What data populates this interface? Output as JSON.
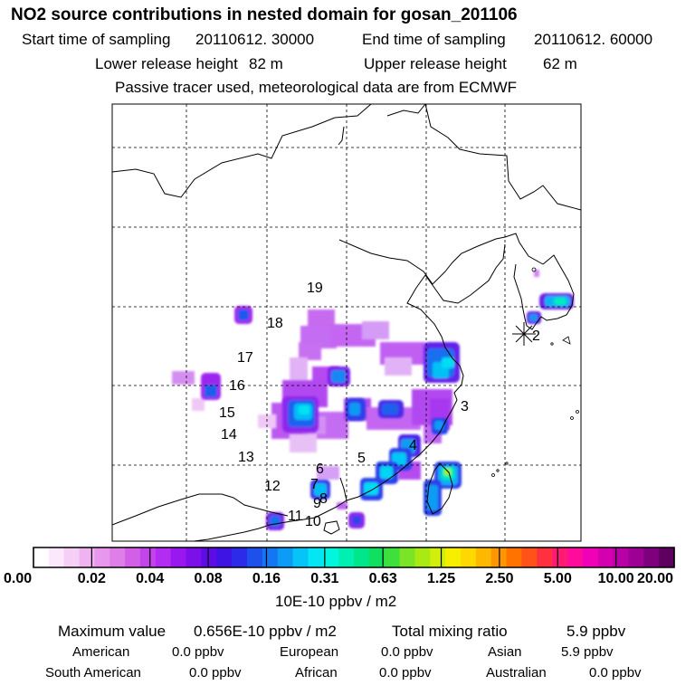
{
  "header": {
    "title": "NO2 source contributions in nested domain for gosan_201106",
    "start_label": "Start time of sampling",
    "start_value": "20110612. 30000",
    "end_label": "End time of sampling",
    "end_value": "20110612. 60000",
    "lower_label": "Lower release height",
    "lower_value": "82 m",
    "upper_label": "Upper release height",
    "upper_value": "62 m",
    "note": "Passive tracer used, meteorological data are from ECMWF"
  },
  "map": {
    "region_numbers": [
      "19",
      "18",
      "17",
      "16",
      "15",
      "14",
      "13",
      "12",
      "11",
      "10",
      "9",
      "8",
      "7",
      "6",
      "5",
      "4",
      "3",
      "2"
    ],
    "receptor_marker": "receptor-star-icon"
  },
  "colorbar": {
    "tick_labels": [
      "0.00",
      "0.02",
      "0.04",
      "0.08",
      "0.16",
      "0.31",
      "0.63",
      "1.25",
      "2.50",
      "5.00",
      "10.00",
      "20.00"
    ],
    "colors": [
      "#ffffff",
      "#fce8fc",
      "#f6cff6",
      "#f0b2f0",
      "#e898ec",
      "#de7ee8",
      "#d160e6",
      "#c444ec",
      "#b22cf2",
      "#9918f0",
      "#7c10ea",
      "#5e0ce6",
      "#3e14e4",
      "#2c2ce8",
      "#1e50ec",
      "#1476f2",
      "#0c9cf6",
      "#06c4f8",
      "#04e6f4",
      "#00f6de",
      "#00f0b4",
      "#00e68a",
      "#10e060",
      "#40e03c",
      "#7ce426",
      "#aaea14",
      "#d2ee0c",
      "#f6f000",
      "#ffd800",
      "#ffb800",
      "#ff9600",
      "#ff7400",
      "#ff5218",
      "#ff3040",
      "#ff1a72",
      "#ff0c9c",
      "#f000b6",
      "#d400b0",
      "#b800a6",
      "#9c0094",
      "#7e007c",
      "#5e0060"
    ],
    "units": "10E-10 ppbv / m2"
  },
  "summary": {
    "max_label": "Maximum value",
    "max_value": "0.656E-10 ppbv / m2",
    "total_label": "Total mixing ratio",
    "total_value": "5.9 ppbv",
    "regions": [
      {
        "name": "American",
        "value": "0.0 ppbv"
      },
      {
        "name": "European",
        "value": "0.0 ppbv"
      },
      {
        "name": "Asian",
        "value": "5.9 ppbv"
      },
      {
        "name": "South American",
        "value": "0.0 ppbv"
      },
      {
        "name": "African",
        "value": "0.0 ppbv"
      },
      {
        "name": "Australian",
        "value": "0.0 ppbv"
      }
    ]
  }
}
